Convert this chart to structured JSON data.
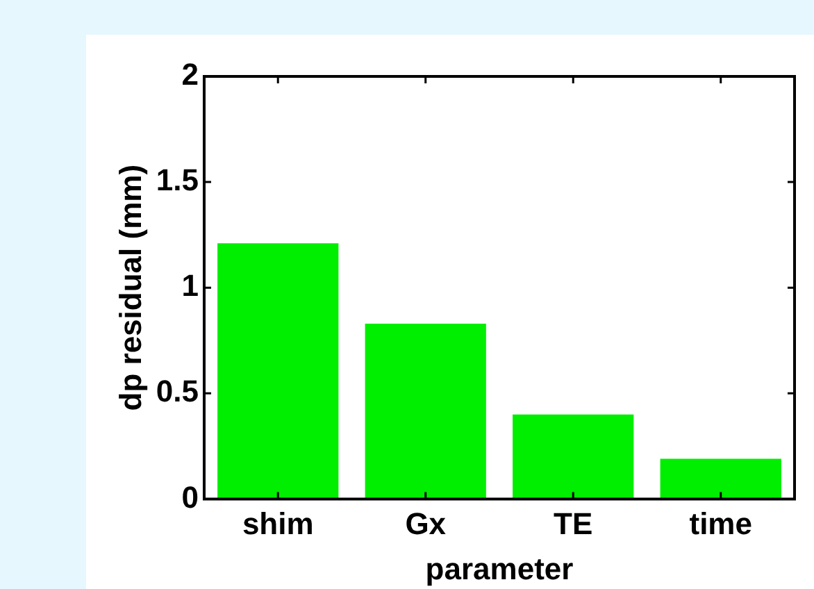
{
  "chart_data": {
    "type": "bar",
    "xlabel": "parameter",
    "ylabel": "dp residual (mm)",
    "categories": [
      "shim",
      "Gx",
      "TE",
      "time"
    ],
    "values": [
      1.21,
      0.83,
      0.4,
      0.19
    ],
    "color": "#00ee00",
    "ylim": [
      0,
      2
    ],
    "yticks": [
      0,
      0.5,
      1,
      1.5,
      2
    ],
    "grid": false,
    "legend": false
  }
}
